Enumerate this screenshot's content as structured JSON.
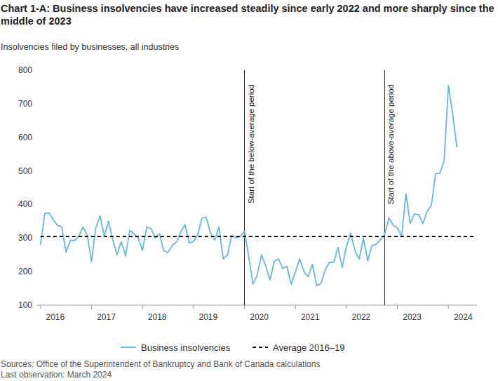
{
  "chart_data": {
    "type": "line",
    "title": "Chart 1-A: Business insolvencies have increased steadily since early 2022 and more sharply since the middle of 2023",
    "subtitle": "Insolvencies filed by businesses, all industries",
    "sources": "Sources: Office of the Superintendent of Bankruptcy and Bank of Canada calculations",
    "note": "Last observation: March 2024",
    "x": [
      2016.0,
      2016.083,
      2016.167,
      2016.25,
      2016.333,
      2016.417,
      2016.5,
      2016.583,
      2016.667,
      2016.75,
      2016.833,
      2016.917,
      2017.0,
      2017.083,
      2017.167,
      2017.25,
      2017.333,
      2017.417,
      2017.5,
      2017.583,
      2017.667,
      2017.75,
      2017.833,
      2017.917,
      2018.0,
      2018.083,
      2018.167,
      2018.25,
      2018.333,
      2018.417,
      2018.5,
      2018.583,
      2018.667,
      2018.75,
      2018.833,
      2018.917,
      2019.0,
      2019.083,
      2019.167,
      2019.25,
      2019.333,
      2019.417,
      2019.5,
      2019.583,
      2019.667,
      2019.75,
      2019.833,
      2019.917,
      2020.0,
      2020.083,
      2020.167,
      2020.25,
      2020.333,
      2020.417,
      2020.5,
      2020.583,
      2020.667,
      2020.75,
      2020.833,
      2020.917,
      2021.0,
      2021.083,
      2021.167,
      2021.25,
      2021.333,
      2021.417,
      2021.5,
      2021.583,
      2021.667,
      2021.75,
      2021.833,
      2021.917,
      2022.0,
      2022.083,
      2022.167,
      2022.25,
      2022.333,
      2022.417,
      2022.5,
      2022.583,
      2022.667,
      2022.75,
      2022.833,
      2022.917,
      2023.0,
      2023.083,
      2023.167,
      2023.25,
      2023.333,
      2023.417,
      2023.5,
      2023.583,
      2023.667,
      2023.75,
      2023.833,
      2023.917,
      2024.0,
      2024.083,
      2024.167
    ],
    "series": [
      {
        "name": "Business insolvencies",
        "color": "#67b8db",
        "line_style": "solid",
        "values": [
          280,
          373,
          375,
          355,
          338,
          333,
          258,
          293,
          293,
          305,
          333,
          308,
          230,
          330,
          366,
          305,
          350,
          295,
          250,
          290,
          247,
          323,
          313,
          300,
          263,
          333,
          328,
          300,
          313,
          262,
          257,
          278,
          288,
          318,
          340,
          285,
          290,
          310,
          360,
          362,
          315,
          294,
          333,
          237,
          250,
          308,
          300,
          305,
          320,
          245,
          163,
          190,
          250,
          218,
          175,
          230,
          238,
          210,
          215,
          162,
          200,
          238,
          200,
          185,
          222,
          158,
          165,
          205,
          228,
          227,
          272,
          213,
          275,
          315,
          262,
          237,
          300,
          232,
          278,
          282,
          295,
          310,
          360,
          338,
          330,
          305,
          432,
          343,
          372,
          370,
          343,
          380,
          398,
          492,
          493,
          530,
          755,
          670,
          570
        ]
      },
      {
        "name": "Average 2016–19",
        "color": "#000000",
        "line_style": "dashed",
        "x": [
          2016.0,
          2024.5
        ],
        "values": [
          305,
          305
        ]
      }
    ],
    "annotations": [
      {
        "type": "vline",
        "x": 2020.0,
        "label": "Start of the below-average period"
      },
      {
        "type": "vline",
        "x": 2022.75,
        "label": "Start of the above-average period"
      }
    ],
    "xlim": [
      2015.92,
      2024.56
    ],
    "xticks": [
      2016,
      2017,
      2018,
      2019,
      2020,
      2021,
      2022,
      2023,
      2024
    ],
    "ylim": [
      100,
      800
    ],
    "yticks": [
      100,
      200,
      300,
      400,
      500,
      600,
      700,
      800
    ],
    "grid": false,
    "legend": "bottom"
  }
}
